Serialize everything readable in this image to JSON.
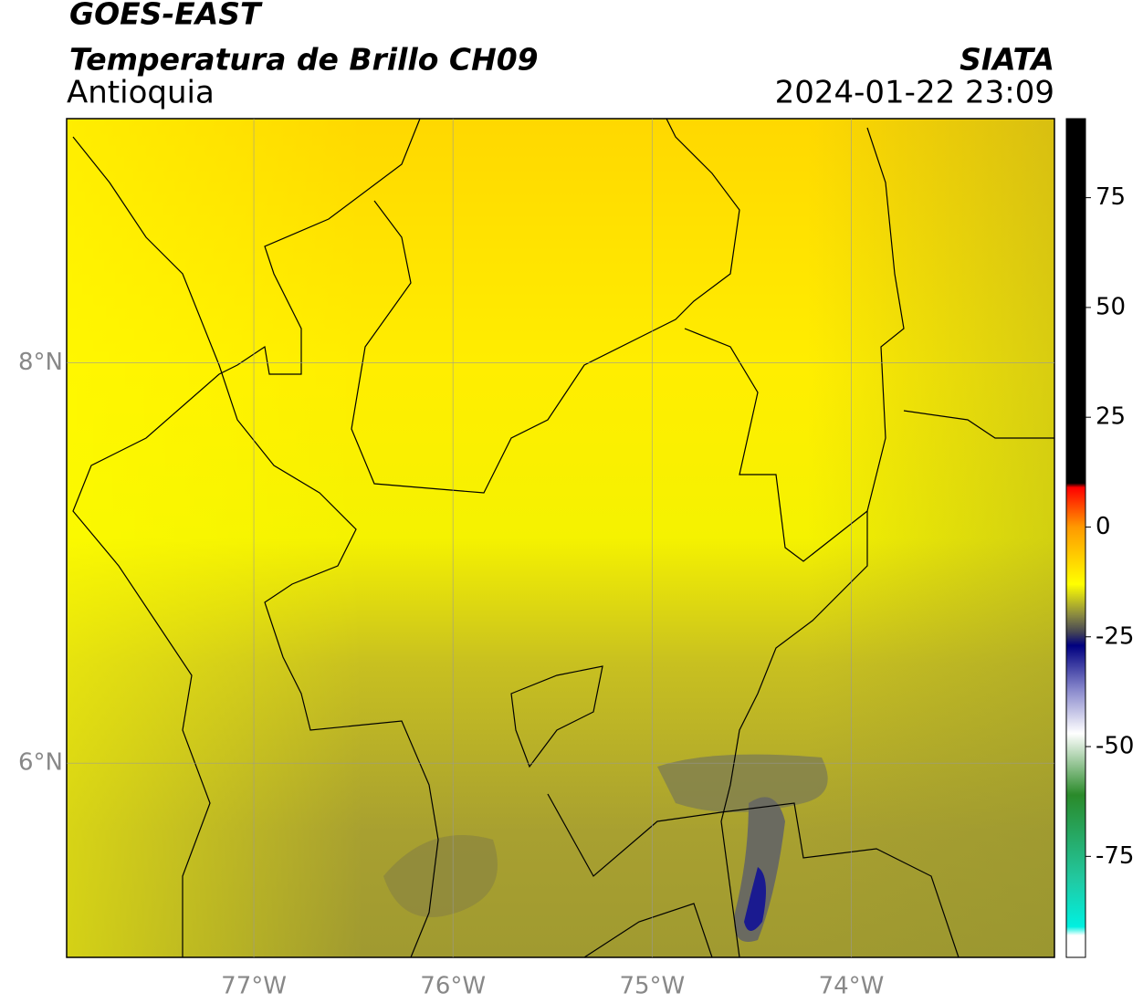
{
  "header": {
    "title": "GOES-EAST",
    "subtitle": "Temperatura de Brillo CH09",
    "region": "Antioquia",
    "source": "SIATA",
    "datetime": "2024-01-22 23:09"
  },
  "map": {
    "xlim": [
      -77.94,
      -72.98
    ],
    "ylim": [
      5.03,
      9.22
    ],
    "xticks": [
      {
        "value": -77,
        "label": "77°W"
      },
      {
        "value": -76,
        "label": "76°W"
      },
      {
        "value": -75,
        "label": "75°W"
      },
      {
        "value": -74,
        "label": "74°W"
      }
    ],
    "yticks": [
      {
        "value": 8,
        "label": "8°N"
      },
      {
        "value": 6,
        "label": "6°N"
      }
    ],
    "grid": true
  },
  "colorbar": {
    "lim": [
      -98,
      93
    ],
    "ticks": [
      75,
      50,
      25,
      0,
      -25,
      -50,
      -75
    ],
    "colors": [
      {
        "value": 93,
        "color": "#000000"
      },
      {
        "value": 10,
        "color": "#000000"
      },
      {
        "value": 9,
        "color": "#ff0000"
      },
      {
        "value": 0,
        "color": "#ff9900"
      },
      {
        "value": -13,
        "color": "#ffff00"
      },
      {
        "value": -20,
        "color": "#8a8a40"
      },
      {
        "value": -24,
        "color": "#444455"
      },
      {
        "value": -27,
        "color": "#000080"
      },
      {
        "value": -37,
        "color": "#8888cc"
      },
      {
        "value": -47,
        "color": "#ffffff"
      },
      {
        "value": -61,
        "color": "#2a8a2a"
      },
      {
        "value": -80,
        "color": "#22c8a0"
      },
      {
        "value": -91,
        "color": "#00f0e0"
      },
      {
        "value": -93,
        "color": "#ffffff"
      },
      {
        "value": -98,
        "color": "#ffffff"
      }
    ]
  }
}
